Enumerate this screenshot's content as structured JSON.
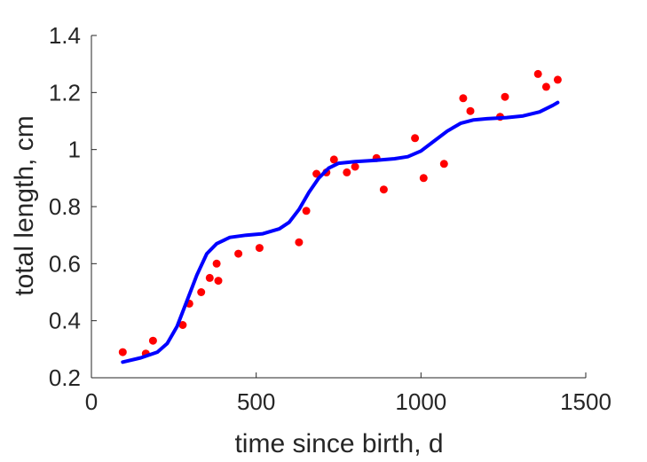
{
  "chart_data": {
    "type": "scatter",
    "title": "",
    "xlabel": "time since birth, d",
    "ylabel": "total length, cm",
    "xlim": [
      0,
      1500
    ],
    "ylim": [
      0.2,
      1.4
    ],
    "xticks": [
      0,
      500,
      1000,
      1500
    ],
    "yticks": [
      0.2,
      0.4,
      0.6,
      0.8,
      1,
      1.2,
      1.4
    ],
    "xtick_labels": [
      "0",
      "500",
      "1000",
      "1500"
    ],
    "ytick_labels": [
      "0.2",
      "0.4",
      "0.6",
      "0.8",
      "1",
      "1.2",
      "1.4"
    ],
    "grid": false,
    "legend": "none",
    "series": [
      {
        "type": "scatter",
        "color": "#ff0000",
        "x": [
          95,
          165,
          187,
          277,
          297,
          333,
          359,
          380,
          385,
          446,
          510,
          630,
          652,
          683,
          713,
          736,
          775,
          800,
          865,
          887,
          982,
          1008,
          1070,
          1128,
          1150,
          1240,
          1255,
          1355,
          1380,
          1415
        ],
        "y": [
          0.29,
          0.285,
          0.33,
          0.385,
          0.46,
          0.5,
          0.55,
          0.6,
          0.54,
          0.635,
          0.655,
          0.675,
          0.785,
          0.915,
          0.92,
          0.965,
          0.92,
          0.94,
          0.97,
          0.86,
          1.04,
          0.9,
          0.95,
          1.18,
          1.135,
          1.115,
          1.185,
          1.265,
          1.22,
          1.245
        ]
      },
      {
        "type": "line",
        "color": "#0000ff",
        "x": [
          95,
          150,
          200,
          230,
          260,
          290,
          320,
          350,
          380,
          420,
          470,
          520,
          570,
          600,
          630,
          660,
          690,
          720,
          750,
          800,
          860,
          920,
          960,
          1000,
          1040,
          1080,
          1120,
          1160,
          1200,
          1260,
          1310,
          1360,
          1400,
          1415
        ],
        "y": [
          0.255,
          0.27,
          0.29,
          0.32,
          0.38,
          0.47,
          0.56,
          0.635,
          0.67,
          0.692,
          0.7,
          0.705,
          0.722,
          0.745,
          0.79,
          0.85,
          0.9,
          0.935,
          0.952,
          0.958,
          0.962,
          0.968,
          0.975,
          0.995,
          1.03,
          1.065,
          1.092,
          1.104,
          1.108,
          1.112,
          1.118,
          1.132,
          1.155,
          1.165
        ]
      }
    ]
  }
}
